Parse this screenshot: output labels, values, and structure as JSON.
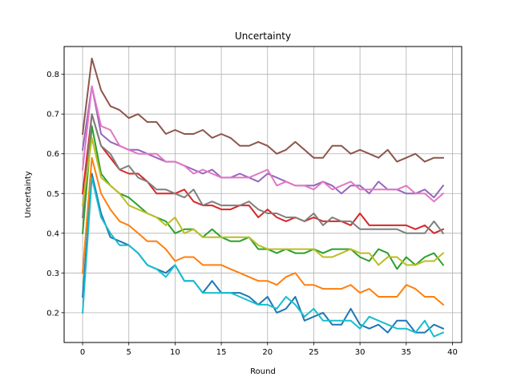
{
  "chart_data": {
    "type": "line",
    "title": "Uncertainty",
    "xlabel": "Round",
    "ylabel": "Uncertainty",
    "xlim": [
      -2,
      41
    ],
    "ylim": [
      0.125,
      0.87
    ],
    "xticks": [
      0,
      5,
      10,
      15,
      20,
      25,
      30,
      35,
      40
    ],
    "yticks": [
      0.2,
      0.3,
      0.4,
      0.5,
      0.6,
      0.7,
      0.8
    ],
    "grid": true,
    "legend": "none",
    "x": [
      0,
      1,
      2,
      3,
      4,
      5,
      6,
      7,
      8,
      9,
      10,
      11,
      12,
      13,
      14,
      15,
      16,
      17,
      18,
      19,
      20,
      21,
      22,
      23,
      24,
      25,
      26,
      27,
      28,
      29,
      30,
      31,
      32,
      33,
      34,
      35,
      36,
      37,
      38,
      39
    ],
    "series": [
      {
        "color": "#1f77b4",
        "values": [
          0.24,
          0.55,
          0.45,
          0.39,
          0.38,
          0.37,
          0.35,
          0.32,
          0.31,
          0.3,
          0.32,
          0.28,
          0.28,
          0.25,
          0.28,
          0.25,
          0.25,
          0.25,
          0.24,
          0.22,
          0.24,
          0.2,
          0.21,
          0.24,
          0.18,
          0.19,
          0.2,
          0.17,
          0.17,
          0.21,
          0.17,
          0.16,
          0.17,
          0.15,
          0.18,
          0.18,
          0.15,
          0.15,
          0.17,
          0.16
        ]
      },
      {
        "color": "#ff7f0e",
        "values": [
          0.3,
          0.59,
          0.5,
          0.46,
          0.43,
          0.42,
          0.4,
          0.38,
          0.38,
          0.36,
          0.33,
          0.34,
          0.34,
          0.32,
          0.32,
          0.32,
          0.31,
          0.3,
          0.29,
          0.28,
          0.28,
          0.27,
          0.29,
          0.3,
          0.27,
          0.27,
          0.26,
          0.26,
          0.26,
          0.27,
          0.25,
          0.26,
          0.24,
          0.24,
          0.24,
          0.27,
          0.26,
          0.24,
          0.24,
          0.22
        ]
      },
      {
        "color": "#2ca02c",
        "values": [
          0.4,
          0.67,
          0.55,
          0.52,
          0.5,
          0.49,
          0.47,
          0.45,
          0.44,
          0.43,
          0.4,
          0.41,
          0.41,
          0.39,
          0.41,
          0.39,
          0.38,
          0.38,
          0.39,
          0.36,
          0.36,
          0.35,
          0.36,
          0.35,
          0.35,
          0.36,
          0.35,
          0.36,
          0.36,
          0.36,
          0.34,
          0.33,
          0.36,
          0.35,
          0.31,
          0.34,
          0.32,
          0.34,
          0.35,
          0.32
        ]
      },
      {
        "color": "#d62728",
        "values": [
          0.5,
          0.7,
          0.62,
          0.59,
          0.56,
          0.55,
          0.55,
          0.53,
          0.5,
          0.5,
          0.5,
          0.51,
          0.48,
          0.47,
          0.47,
          0.46,
          0.46,
          0.47,
          0.47,
          0.44,
          0.46,
          0.44,
          0.43,
          0.44,
          0.43,
          0.44,
          0.43,
          0.43,
          0.43,
          0.42,
          0.45,
          0.42,
          0.42,
          0.42,
          0.42,
          0.42,
          0.41,
          0.42,
          0.4,
          0.41
        ]
      },
      {
        "color": "#9467bd",
        "values": [
          0.61,
          0.77,
          0.65,
          0.63,
          0.62,
          0.61,
          0.61,
          0.6,
          0.59,
          0.58,
          0.58,
          0.57,
          0.56,
          0.55,
          0.56,
          0.54,
          0.54,
          0.55,
          0.54,
          0.53,
          0.55,
          0.54,
          0.53,
          0.52,
          0.52,
          0.52,
          0.53,
          0.52,
          0.5,
          0.52,
          0.52,
          0.5,
          0.53,
          0.51,
          0.51,
          0.5,
          0.5,
          0.51,
          0.49,
          0.52
        ]
      },
      {
        "color": "#8c564b",
        "values": [
          0.65,
          0.84,
          0.76,
          0.72,
          0.71,
          0.69,
          0.7,
          0.68,
          0.68,
          0.65,
          0.66,
          0.65,
          0.65,
          0.66,
          0.64,
          0.65,
          0.64,
          0.62,
          0.62,
          0.63,
          0.62,
          0.6,
          0.61,
          0.63,
          0.61,
          0.59,
          0.59,
          0.62,
          0.62,
          0.6,
          0.61,
          0.6,
          0.59,
          0.61,
          0.58,
          0.59,
          0.6,
          0.58,
          0.59,
          0.59
        ]
      },
      {
        "color": "#e377c2",
        "values": [
          0.56,
          0.77,
          0.67,
          0.66,
          0.62,
          0.61,
          0.6,
          0.6,
          0.6,
          0.58,
          0.58,
          0.57,
          0.55,
          0.56,
          0.55,
          0.54,
          0.54,
          0.54,
          0.54,
          0.55,
          0.56,
          0.52,
          0.53,
          0.52,
          0.52,
          0.51,
          0.53,
          0.51,
          0.52,
          0.53,
          0.51,
          0.51,
          0.51,
          0.51,
          0.51,
          0.52,
          0.5,
          0.5,
          0.48,
          0.5
        ]
      },
      {
        "color": "#7f7f7f",
        "values": [
          0.44,
          0.7,
          0.62,
          0.6,
          0.56,
          0.57,
          0.54,
          0.53,
          0.51,
          0.51,
          0.5,
          0.49,
          0.51,
          0.47,
          0.48,
          0.47,
          0.47,
          0.47,
          0.48,
          0.46,
          0.45,
          0.45,
          0.44,
          0.44,
          0.43,
          0.45,
          0.42,
          0.44,
          0.43,
          0.43,
          0.41,
          0.41,
          0.41,
          0.41,
          0.41,
          0.4,
          0.4,
          0.4,
          0.43,
          0.4
        ]
      },
      {
        "color": "#bcbd22",
        "values": [
          0.47,
          0.64,
          0.54,
          0.52,
          0.5,
          0.47,
          0.46,
          0.45,
          0.44,
          0.42,
          0.44,
          0.4,
          0.41,
          0.39,
          0.39,
          0.39,
          0.39,
          0.39,
          0.39,
          0.37,
          0.36,
          0.36,
          0.36,
          0.36,
          0.36,
          0.36,
          0.34,
          0.34,
          0.35,
          0.36,
          0.35,
          0.35,
          0.32,
          0.34,
          0.34,
          0.32,
          0.32,
          0.33,
          0.33,
          0.35
        ]
      },
      {
        "color": "#17becf",
        "values": [
          0.2,
          0.54,
          0.44,
          0.4,
          0.37,
          0.37,
          0.35,
          0.32,
          0.31,
          0.29,
          0.32,
          0.28,
          0.28,
          0.25,
          0.25,
          0.25,
          0.25,
          0.24,
          0.23,
          0.22,
          0.22,
          0.21,
          0.24,
          0.22,
          0.19,
          0.21,
          0.18,
          0.18,
          0.18,
          0.18,
          0.16,
          0.19,
          0.18,
          0.17,
          0.16,
          0.16,
          0.15,
          0.18,
          0.14,
          0.15
        ]
      }
    ]
  }
}
